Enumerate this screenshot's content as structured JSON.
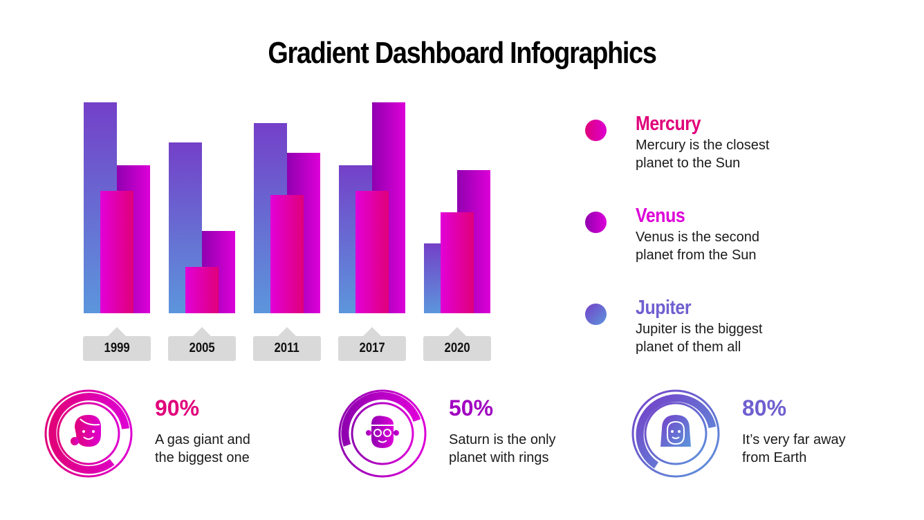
{
  "title": "Gradient Dashboard Infographics",
  "colors": {
    "mercury": "#e0007a",
    "venus": "#dd00d8",
    "jupiter": "#6f5fd0",
    "label_bg": "#d9d9d9"
  },
  "legend": [
    {
      "name": "Mercury",
      "desc_line1": "Mercury is the closest",
      "desc_line2": "planet to the Sun",
      "color": "#e0007a"
    },
    {
      "name": "Venus",
      "desc_line1": "Venus is the second",
      "desc_line2": "planet from the Sun",
      "color": "#dd00d8"
    },
    {
      "name": "Jupiter",
      "desc_line1": "Jupiter is the biggest",
      "desc_line2": "planet of them all",
      "color": "#6f5fd0"
    }
  ],
  "stats": [
    {
      "value": "90%",
      "desc_line1": "A gas giant and",
      "desc_line2": "the biggest one",
      "icon": "woman-headset-icon",
      "color": "#e0007a"
    },
    {
      "value": "50%",
      "desc_line1": "Saturn is the only",
      "desc_line2": "planet with rings",
      "icon": "man-glasses-icon",
      "color": "#a000c0"
    },
    {
      "value": "80%",
      "desc_line1": "It’s very far away",
      "desc_line2": "from Earth",
      "icon": "woman-long-hair-icon",
      "color": "#6f5fd0"
    }
  ],
  "chart_data": {
    "type": "bar",
    "title": "Gradient Dashboard Infographics",
    "categories": [
      "1999",
      "2005",
      "2011",
      "2017",
      "2020"
    ],
    "series": [
      {
        "name": "Jupiter",
        "values": [
          100,
          81,
          90,
          70,
          33
        ]
      },
      {
        "name": "Venus",
        "values": [
          70,
          39,
          76,
          100,
          68
        ]
      },
      {
        "name": "Mercury",
        "values": [
          58,
          22,
          56,
          58,
          48
        ]
      }
    ],
    "xlabel": "",
    "ylabel": "",
    "ylim": [
      0,
      100
    ],
    "grid": false,
    "legend_position": "right",
    "layout": "overlapping grouped bars (Jupiter back-left, Venus back-right, Mercury front-center)"
  }
}
